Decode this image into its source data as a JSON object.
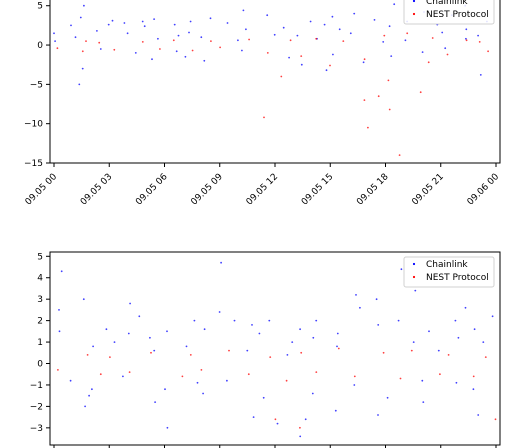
{
  "chart_data": [
    {
      "type": "scatter",
      "xlim": [
        "09.05 00",
        "09.06 00"
      ],
      "ylim": [
        -15,
        7
      ],
      "xticks": [
        "09.05 00",
        "09.05 03",
        "09.05 06",
        "09.05 09",
        "09.05 12",
        "09.05 15",
        "09.05 18",
        "09.05 21",
        "09.06 00"
      ],
      "yticks": [
        5,
        0,
        -5,
        -10,
        -15
      ],
      "legend_position": "top-right",
      "series": [
        {
          "name": "Chainlink",
          "color": "#0000ff",
          "points": [
            [
              "09.05 00",
              1.5
            ],
            [
              "09.05 00",
              2.5
            ],
            [
              "09.05 00",
              0.5
            ],
            [
              "09.05 01",
              -3.0
            ],
            [
              "09.05 01",
              -5.0
            ],
            [
              "09.05 01",
              3.5
            ],
            [
              "09.05 01",
              5.0
            ],
            [
              "09.05 01",
              1.0
            ],
            [
              "09.05 02",
              1.8
            ],
            [
              "09.05 02",
              -0.5
            ],
            [
              "09.05 02",
              2.6
            ],
            [
              "09.05 03",
              2.8
            ],
            [
              "09.05 03",
              3.1
            ],
            [
              "09.05 03",
              1.5
            ],
            [
              "09.05 04",
              3.0
            ],
            [
              "09.05 04",
              -1.0
            ],
            [
              "09.05 04",
              2.4
            ],
            [
              "09.05 05",
              3.3
            ],
            [
              "09.05 05",
              0.8
            ],
            [
              "09.05 05",
              -1.8
            ],
            [
              "09.05 06",
              1.2
            ],
            [
              "09.05 06",
              2.6
            ],
            [
              "09.05 06",
              -0.8
            ],
            [
              "09.05 07",
              3.0
            ],
            [
              "09.05 07",
              -1.5
            ],
            [
              "09.05 07",
              1.6
            ],
            [
              "09.05 08",
              3.4
            ],
            [
              "09.05 08",
              1.0
            ],
            [
              "09.05 08",
              -2.0
            ],
            [
              "09.05 09",
              2.8
            ],
            [
              "09.05 09",
              0.6
            ],
            [
              "09.05 09",
              6.2
            ],
            [
              "09.05 10",
              4.4
            ],
            [
              "09.05 10",
              2.0
            ],
            [
              "09.05 10",
              -0.7
            ],
            [
              "09.05 11",
              3.8
            ],
            [
              "09.05 11",
              1.3
            ],
            [
              "09.05 11",
              6.0
            ],
            [
              "09.05 12",
              2.2
            ],
            [
              "09.05 12",
              -1.6
            ],
            [
              "09.05 12",
              6.8
            ],
            [
              "09.05 13",
              3.0
            ],
            [
              "09.05 13",
              -2.5
            ],
            [
              "09.05 13",
              1.2
            ],
            [
              "09.05 14",
              2.6
            ],
            [
              "09.05 14",
              -3.2
            ],
            [
              "09.05 14",
              0.8
            ],
            [
              "09.05 15",
              2.0
            ],
            [
              "09.05 15",
              -1.2
            ],
            [
              "09.05 15",
              3.6
            ],
            [
              "09.05 16",
              4.0
            ],
            [
              "09.05 16",
              1.5
            ],
            [
              "09.05 16",
              -2.2
            ],
            [
              "09.05 17",
              6.6
            ],
            [
              "09.05 17",
              3.2
            ],
            [
              "09.05 17",
              0.4
            ],
            [
              "09.05 18",
              5.2
            ],
            [
              "09.05 18",
              2.4
            ],
            [
              "09.05 18",
              -1.4
            ],
            [
              "09.05 19",
              3.0
            ],
            [
              "09.05 19",
              6.4
            ],
            [
              "09.05 19",
              0.6
            ],
            [
              "09.05 20",
              2.6
            ],
            [
              "09.05 20",
              -0.9
            ],
            [
              "09.05 20",
              4.2
            ],
            [
              "09.05 21",
              1.6
            ],
            [
              "09.05 21",
              3.8
            ],
            [
              "09.05 21",
              -0.4
            ],
            [
              "09.05 22",
              2.0
            ],
            [
              "09.05 22",
              5.0
            ],
            [
              "09.05 22",
              0.8
            ],
            [
              "09.05 23",
              3.0
            ],
            [
              "09.05 23",
              -3.8
            ],
            [
              "09.05 23",
              1.2
            ]
          ]
        },
        {
          "name": "NEST Protocol",
          "color": "#ff0000",
          "points": [
            [
              "09.05 00",
              -0.4
            ],
            [
              "09.05 01",
              0.5
            ],
            [
              "09.05 01",
              -0.8
            ],
            [
              "09.05 02",
              0.3
            ],
            [
              "09.05 03",
              -0.6
            ],
            [
              "09.05 04",
              0.4
            ],
            [
              "09.05 05",
              -0.5
            ],
            [
              "09.05 06",
              0.6
            ],
            [
              "09.05 07",
              -0.7
            ],
            [
              "09.05 08",
              0.5
            ],
            [
              "09.05 09",
              -0.3
            ],
            [
              "09.05 10",
              0.7
            ],
            [
              "09.05 11",
              -1.0
            ],
            [
              "09.05 11",
              -9.2
            ],
            [
              "09.05 12",
              0.6
            ],
            [
              "09.05 12",
              -4.0
            ],
            [
              "09.05 13",
              -1.4
            ],
            [
              "09.05 14",
              0.8
            ],
            [
              "09.05 14",
              -2.6
            ],
            [
              "09.05 15",
              0.5
            ],
            [
              "09.05 16",
              -1.8
            ],
            [
              "09.05 16",
              -7.0
            ],
            [
              "09.05 17",
              -10.5
            ],
            [
              "09.05 17",
              -6.5
            ],
            [
              "09.05 17",
              1.2
            ],
            [
              "09.05 18",
              -8.2
            ],
            [
              "09.05 18",
              -14.0
            ],
            [
              "09.05 18",
              -4.5
            ],
            [
              "09.05 19",
              -6.0
            ],
            [
              "09.05 19",
              1.5
            ],
            [
              "09.05 20",
              -2.2
            ],
            [
              "09.05 20",
              0.9
            ],
            [
              "09.05 21",
              -1.2
            ],
            [
              "09.05 22",
              0.6
            ],
            [
              "09.05 23",
              -0.8
            ],
            [
              "09.05 23",
              0.4
            ]
          ]
        }
      ]
    },
    {
      "type": "scatter",
      "xlim": [
        "09.05 00",
        "09.06 00"
      ],
      "ylim": [
        -3.8,
        5.2
      ],
      "yticks": [
        5,
        4,
        3,
        2,
        1,
        0,
        -1,
        -2,
        -3
      ],
      "legend_position": "top-right",
      "series": [
        {
          "name": "Chainlink",
          "color": "#0000ff",
          "points": [
            [
              "09.05 00",
              2.5
            ],
            [
              "09.05 00",
              4.3
            ],
            [
              "09.05 00",
              1.5
            ],
            [
              "09.05 00",
              -0.8
            ],
            [
              "09.05 01",
              3.0
            ],
            [
              "09.05 01",
              -1.5
            ],
            [
              "09.05 01",
              -2.0
            ],
            [
              "09.05 02",
              0.8
            ],
            [
              "09.05 02",
              1.6
            ],
            [
              "09.05 02",
              -1.2
            ],
            [
              "09.05 03",
              1.0
            ],
            [
              "09.05 03",
              -0.6
            ],
            [
              "09.05 04",
              2.2
            ],
            [
              "09.05 04",
              2.8
            ],
            [
              "09.05 04",
              1.4
            ],
            [
              "09.05 05",
              1.2
            ],
            [
              "09.05 05",
              -1.8
            ],
            [
              "09.05 05",
              0.6
            ],
            [
              "09.05 06",
              -3.0
            ],
            [
              "09.05 06",
              -1.2
            ],
            [
              "09.05 06",
              1.5
            ],
            [
              "09.05 07",
              2.0
            ],
            [
              "09.05 07",
              -0.9
            ],
            [
              "09.05 07",
              0.8
            ],
            [
              "09.05 08",
              1.6
            ],
            [
              "09.05 08",
              -1.4
            ],
            [
              "09.05 08",
              2.4
            ],
            [
              "09.05 09",
              4.7
            ],
            [
              "09.05 09",
              2.0
            ],
            [
              "09.05 09",
              -0.8
            ],
            [
              "09.05 10",
              1.8
            ],
            [
              "09.05 10",
              -2.5
            ],
            [
              "09.05 10",
              0.6
            ],
            [
              "09.05 11",
              1.4
            ],
            [
              "09.05 11",
              -1.6
            ],
            [
              "09.05 11",
              2.0
            ],
            [
              "09.05 12",
              1.0
            ],
            [
              "09.05 12",
              -2.8
            ],
            [
              "09.05 12",
              0.4
            ],
            [
              "09.05 13",
              1.6
            ],
            [
              "09.05 13",
              -3.4
            ],
            [
              "09.05 13",
              -2.6
            ],
            [
              "09.05 14",
              1.2
            ],
            [
              "09.05 14",
              -1.4
            ],
            [
              "09.05 14",
              2.0
            ],
            [
              "09.05 15",
              1.4
            ],
            [
              "09.05 15",
              -2.2
            ],
            [
              "09.05 15",
              0.8
            ],
            [
              "09.05 16",
              3.2
            ],
            [
              "09.05 16",
              2.6
            ],
            [
              "09.05 16",
              -1.0
            ],
            [
              "09.05 17",
              3.0
            ],
            [
              "09.05 17",
              1.8
            ],
            [
              "09.05 17",
              -2.4
            ],
            [
              "09.05 18",
              4.4
            ],
            [
              "09.05 18",
              2.0
            ],
            [
              "09.05 18",
              -1.6
            ],
            [
              "09.05 19",
              3.4
            ],
            [
              "09.05 19",
              1.0
            ],
            [
              "09.05 19",
              -0.8
            ],
            [
              "09.05 20",
              1.5
            ],
            [
              "09.05 20",
              -1.8
            ],
            [
              "09.05 20",
              0.6
            ],
            [
              "09.05 21",
              1.2
            ],
            [
              "09.05 21",
              -0.9
            ],
            [
              "09.05 21",
              2.0
            ],
            [
              "09.05 22",
              2.6
            ],
            [
              "09.05 22",
              1.6
            ],
            [
              "09.05 22",
              -1.2
            ],
            [
              "09.05 23",
              2.2
            ],
            [
              "09.05 23",
              -2.4
            ],
            [
              "09.05 23",
              1.0
            ]
          ]
        },
        {
          "name": "NEST Protocol",
          "color": "#ff0000",
          "points": [
            [
              "09.05 00",
              -0.3
            ],
            [
              "09.05 01",
              0.4
            ],
            [
              "09.05 02",
              -0.5
            ],
            [
              "09.05 03",
              0.3
            ],
            [
              "09.05 04",
              -0.4
            ],
            [
              "09.05 05",
              0.5
            ],
            [
              "09.05 06",
              -0.6
            ],
            [
              "09.05 07",
              0.4
            ],
            [
              "09.05 08",
              -0.3
            ],
            [
              "09.05 09",
              0.6
            ],
            [
              "09.05 10",
              -0.5
            ],
            [
              "09.05 11",
              0.3
            ],
            [
              "09.05 12",
              -0.8
            ],
            [
              "09.05 12",
              -2.6
            ],
            [
              "09.05 13",
              0.5
            ],
            [
              "09.05 13",
              -3.0
            ],
            [
              "09.05 14",
              -0.4
            ],
            [
              "09.05 15",
              0.7
            ],
            [
              "09.05 16",
              -0.6
            ],
            [
              "09.05 17",
              0.5
            ],
            [
              "09.05 18",
              -0.7
            ],
            [
              "09.05 19",
              0.6
            ],
            [
              "09.05 20",
              -0.5
            ],
            [
              "09.05 21",
              0.4
            ],
            [
              "09.05 22",
              -0.6
            ],
            [
              "09.05 23",
              0.3
            ],
            [
              "09.05 23",
              -2.6
            ]
          ]
        }
      ]
    }
  ]
}
